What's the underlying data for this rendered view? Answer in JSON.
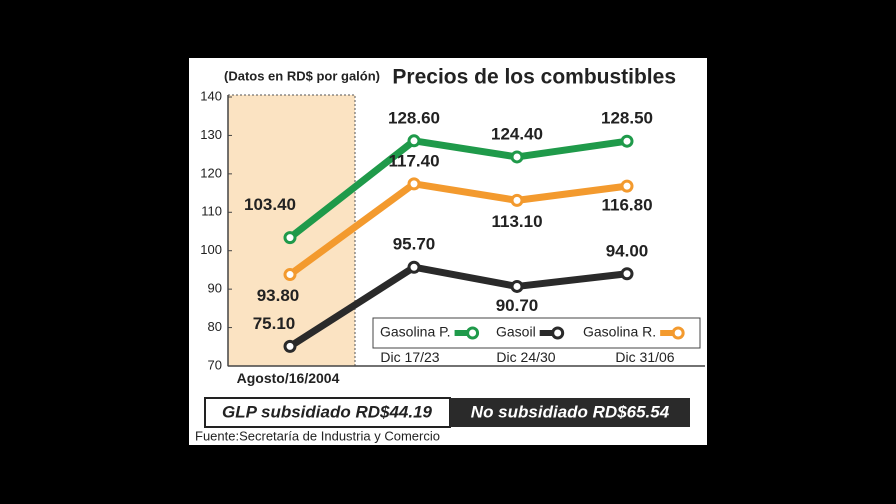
{
  "chart_data": {
    "type": "line",
    "title": "Precios de los combustibles",
    "subtitle": "(Datos en RD$ por galón)",
    "categories": [
      "Agosto/16/2004",
      "Dic 17/23",
      "Dic 24/30",
      "Dic 31/06"
    ],
    "series": [
      {
        "name": "Gasolina P.",
        "color": "#1f9a4a",
        "values": [
          103.4,
          128.6,
          124.4,
          128.5
        ],
        "value_labels": [
          "103.40",
          "128.60",
          "124.40",
          "128.50"
        ]
      },
      {
        "name": "Gasoil",
        "color": "#2a2a2a",
        "values": [
          75.1,
          95.7,
          90.7,
          94.0
        ],
        "value_labels": [
          "75.10",
          "95.70",
          "90.70",
          "94.00"
        ]
      },
      {
        "name": "Gasolina R.",
        "color": "#f39a2e",
        "values": [
          93.8,
          117.4,
          113.1,
          116.8
        ],
        "value_labels": [
          "93.80",
          "117.40",
          "113.10",
          "116.80"
        ]
      }
    ],
    "ylim": [
      70,
      140
    ],
    "yticks": [
      70,
      80,
      90,
      100,
      110,
      120,
      130,
      140
    ],
    "annotations": [
      "GLP subsidiado RD$44.19",
      "No subsidiado RD$65.54"
    ],
    "source": "Fuente:Secretaría de Industria y Comercio"
  }
}
